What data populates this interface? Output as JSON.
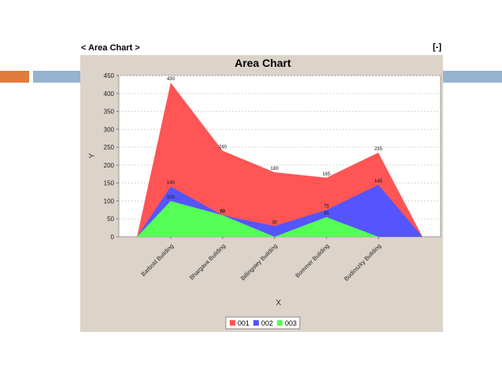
{
  "panel": {
    "title": "< Area Chart >",
    "toggle_label": "[-]"
  },
  "colors": {
    "series_001": "#ff5555",
    "series_002": "#5555ff",
    "series_003": "#55ff55",
    "frame_background": "#dcd3c9",
    "plot_background": "#ffffff",
    "accent_orange": "#e07b3c",
    "accent_blue": "#96b3cf"
  },
  "chart_data": {
    "type": "area",
    "title": "Area Chart",
    "xlabel": "X",
    "ylabel": "Y",
    "categories": [
      "Barbold Building",
      "Bhargava Building",
      "Billingsley Building",
      "Bommer Building",
      "Budinszky Building"
    ],
    "ylim": [
      0,
      450
    ],
    "yticks": [
      0,
      50,
      100,
      150,
      200,
      250,
      300,
      350,
      400,
      450
    ],
    "grid": true,
    "legend": "bottom",
    "series": [
      {
        "name": "001",
        "values": [
          430,
          240,
          180,
          165,
          235
        ]
      },
      {
        "name": "002",
        "values": [
          140,
          60,
          30,
          75,
          145
        ]
      },
      {
        "name": "003",
        "values": [
          100,
          60,
          0,
          55,
          0
        ]
      }
    ],
    "value_labels": [
      {
        "series": "001",
        "labels": [
          "430",
          "240",
          "180",
          "165",
          "235"
        ]
      },
      {
        "series": "002",
        "labels": [
          "140",
          "60",
          "30",
          "75",
          "145"
        ]
      },
      {
        "series": "003",
        "labels": [
          "100",
          "60",
          "",
          "55",
          ""
        ]
      }
    ]
  }
}
